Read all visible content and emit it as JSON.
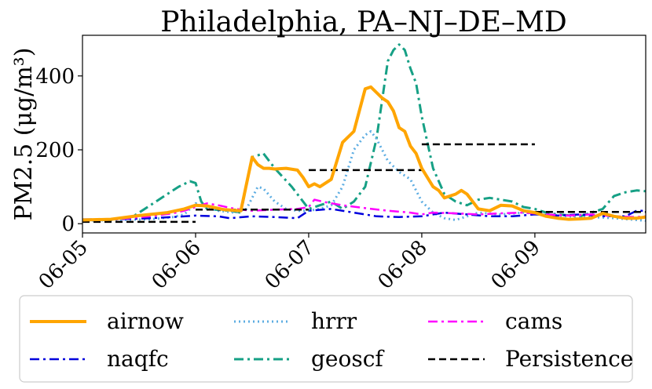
{
  "chart_data": {
    "type": "line",
    "title": "Philadelphia, PA–NJ–DE–MD",
    "ylabel": "PM2.5 (μg/m³)",
    "xlabel": "",
    "x_ticks": [
      "06-05",
      "06-06",
      "06-07",
      "06-08",
      "06-09"
    ],
    "y_ticks": [
      0,
      200,
      400
    ],
    "xlim": [
      0,
      4.98
    ],
    "ylim": [
      -25,
      510
    ],
    "grid": false,
    "legend_position": "bottom",
    "series": [
      {
        "name": "airnow",
        "color": "#FFA500",
        "style": "solid",
        "x": [
          0,
          0.25,
          0.5,
          0.75,
          0.9,
          1.0,
          1.1,
          1.25,
          1.4,
          1.5,
          1.55,
          1.6,
          1.65,
          1.7,
          1.8,
          1.9,
          1.95,
          2.0,
          2.05,
          2.1,
          2.2,
          2.3,
          2.4,
          2.5,
          2.55,
          2.6,
          2.65,
          2.7,
          2.75,
          2.8,
          2.85,
          2.9,
          2.95,
          3.0,
          3.1,
          3.15,
          3.2,
          3.3,
          3.35,
          3.4,
          3.5,
          3.6,
          3.7,
          3.8,
          3.9,
          4.0,
          4.1,
          4.2,
          4.3,
          4.4,
          4.5,
          4.6,
          4.7,
          4.8,
          4.9,
          4.98
        ],
        "y": [
          10,
          12,
          22,
          30,
          40,
          50,
          48,
          38,
          35,
          180,
          160,
          150,
          150,
          148,
          150,
          145,
          125,
          100,
          108,
          100,
          120,
          220,
          250,
          365,
          370,
          355,
          340,
          330,
          305,
          260,
          250,
          210,
          190,
          150,
          100,
          90,
          70,
          80,
          90,
          80,
          40,
          35,
          50,
          48,
          35,
          30,
          20,
          15,
          12,
          13,
          15,
          28,
          20,
          15,
          15,
          18
        ]
      },
      {
        "name": "hrrr",
        "color": "#5DADE2",
        "style": "dotted",
        "x": [
          0,
          0.3,
          0.6,
          0.8,
          0.9,
          1.0,
          1.1,
          1.2,
          1.35,
          1.45,
          1.55,
          1.6,
          1.7,
          1.8,
          1.9,
          2.0,
          2.1,
          2.2,
          2.3,
          2.4,
          2.5,
          2.55,
          2.6,
          2.7,
          2.8,
          2.9,
          3.0,
          3.1,
          3.2,
          3.3,
          3.4,
          3.5,
          3.7,
          3.9,
          4.1,
          4.3,
          4.5,
          4.7,
          4.9,
          4.98
        ],
        "y": [
          8,
          10,
          12,
          18,
          25,
          55,
          45,
          35,
          30,
          40,
          100,
          95,
          60,
          40,
          35,
          35,
          40,
          50,
          100,
          200,
          240,
          250,
          230,
          170,
          140,
          120,
          60,
          30,
          15,
          10,
          20,
          30,
          25,
          30,
          25,
          20,
          18,
          15,
          10,
          8
        ]
      },
      {
        "name": "cams",
        "color": "#FF00FF",
        "style": "dashdot",
        "x": [
          0,
          0.3,
          0.6,
          0.8,
          0.9,
          1.0,
          1.1,
          1.2,
          1.35,
          1.5,
          1.7,
          1.9,
          2.0,
          2.05,
          2.15,
          2.3,
          2.5,
          2.7,
          2.9,
          3.0,
          3.1,
          3.3,
          3.5,
          3.7,
          3.9,
          4.1,
          4.3,
          4.5,
          4.7,
          4.9,
          4.98
        ],
        "y": [
          10,
          12,
          20,
          28,
          35,
          45,
          55,
          50,
          40,
          35,
          38,
          40,
          45,
          65,
          58,
          50,
          42,
          35,
          30,
          25,
          30,
          28,
          25,
          28,
          30,
          25,
          22,
          25,
          20,
          18,
          20
        ]
      },
      {
        "name": "naqfc",
        "color": "#0000DD",
        "style": "dashdot",
        "x": [
          0,
          0.3,
          0.6,
          0.8,
          1.0,
          1.2,
          1.3,
          1.5,
          1.7,
          1.9,
          2.0,
          2.2,
          2.4,
          2.6,
          2.8,
          3.0,
          3.2,
          3.4,
          3.6,
          3.8,
          4.0,
          4.2,
          4.4,
          4.6,
          4.8,
          4.9,
          4.98
        ],
        "y": [
          12,
          12,
          15,
          18,
          22,
          20,
          15,
          20,
          18,
          15,
          35,
          40,
          30,
          20,
          18,
          20,
          30,
          25,
          20,
          20,
          25,
          22,
          25,
          20,
          20,
          35,
          35
        ]
      },
      {
        "name": "geoscf",
        "color": "#16A085",
        "style": "dashdot",
        "x": [
          0,
          0.25,
          0.45,
          0.6,
          0.75,
          0.85,
          0.95,
          1.0,
          1.05,
          1.1,
          1.3,
          1.4,
          1.5,
          1.6,
          1.7,
          1.85,
          2.0,
          2.1,
          2.2,
          2.3,
          2.4,
          2.5,
          2.6,
          2.7,
          2.75,
          2.8,
          2.85,
          2.9,
          2.95,
          3.0,
          3.1,
          3.2,
          3.3,
          3.4,
          3.5,
          3.6,
          3.7,
          3.8,
          3.9,
          4.0,
          4.1,
          4.2,
          4.4,
          4.6,
          4.7,
          4.8,
          4.9,
          4.98
        ],
        "y": [
          10,
          10,
          20,
          50,
          80,
          100,
          115,
          110,
          60,
          40,
          35,
          30,
          180,
          190,
          150,
          100,
          40,
          50,
          60,
          40,
          60,
          100,
          230,
          440,
          470,
          485,
          470,
          420,
          380,
          290,
          150,
          80,
          60,
          50,
          65,
          70,
          65,
          60,
          45,
          40,
          30,
          25,
          20,
          40,
          75,
          85,
          90,
          88
        ]
      },
      {
        "name": "Persistence",
        "color": "#000000",
        "style": "dashed",
        "segments": [
          {
            "x": [
              0,
              1
            ],
            "y": [
              5,
              5
            ]
          },
          {
            "x": [
              1,
              2
            ],
            "y": [
              38,
              38
            ]
          },
          {
            "x": [
              2,
              3
            ],
            "y": [
              145,
              145
            ]
          },
          {
            "x": [
              3,
              4
            ],
            "y": [
              215,
              215
            ]
          },
          {
            "x": [
              4,
              4.98
            ],
            "y": [
              32,
              32
            ]
          }
        ]
      }
    ]
  },
  "legend": {
    "items": [
      {
        "label": "airnow",
        "series": "airnow"
      },
      {
        "label": "hrrr",
        "series": "hrrr"
      },
      {
        "label": "cams",
        "series": "cams"
      },
      {
        "label": "naqfc",
        "series": "naqfc"
      },
      {
        "label": "geoscf",
        "series": "geoscf"
      },
      {
        "label": "Persistence",
        "series": "Persistence"
      }
    ]
  }
}
